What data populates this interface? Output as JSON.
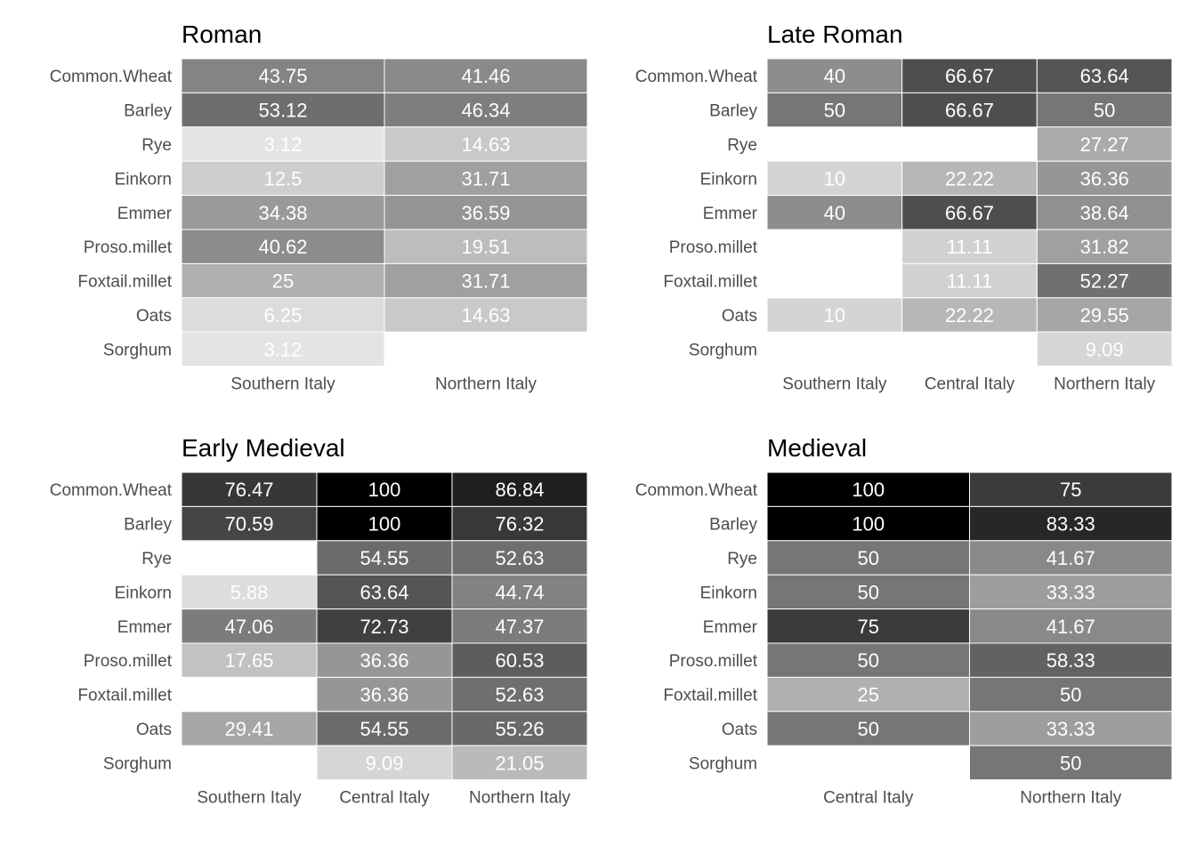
{
  "chart_data": [
    {
      "type": "heatmap",
      "title": "Roman",
      "rows": [
        "Common.Wheat",
        "Barley",
        "Rye",
        "Einkorn",
        "Emmer",
        "Proso.millet",
        "Foxtail.millet",
        "Oats",
        "Sorghum"
      ],
      "columns": [
        "Southern Italy",
        "Northern Italy"
      ],
      "values": [
        [
          43.75,
          41.46
        ],
        [
          53.12,
          46.34
        ],
        [
          3.12,
          14.63
        ],
        [
          12.5,
          31.71
        ],
        [
          34.38,
          36.59
        ],
        [
          40.62,
          19.51
        ],
        [
          25,
          31.71
        ],
        [
          6.25,
          14.63
        ],
        [
          3.12,
          null
        ]
      ]
    },
    {
      "type": "heatmap",
      "title": "Late Roman",
      "rows": [
        "Common.Wheat",
        "Barley",
        "Rye",
        "Einkorn",
        "Emmer",
        "Proso.millet",
        "Foxtail.millet",
        "Oats",
        "Sorghum"
      ],
      "columns": [
        "Southern Italy",
        "Central Italy",
        "Northern Italy"
      ],
      "values": [
        [
          40,
          66.67,
          63.64
        ],
        [
          50,
          66.67,
          50
        ],
        [
          null,
          null,
          27.27
        ],
        [
          10,
          22.22,
          36.36
        ],
        [
          40,
          66.67,
          38.64
        ],
        [
          null,
          11.11,
          31.82
        ],
        [
          null,
          11.11,
          52.27
        ],
        [
          10,
          22.22,
          29.55
        ],
        [
          null,
          null,
          9.09
        ]
      ]
    },
    {
      "type": "heatmap",
      "title": "Early Medieval",
      "rows": [
        "Common.Wheat",
        "Barley",
        "Rye",
        "Einkorn",
        "Emmer",
        "Proso.millet",
        "Foxtail.millet",
        "Oats",
        "Sorghum"
      ],
      "columns": [
        "Southern Italy",
        "Central Italy",
        "Northern Italy"
      ],
      "values": [
        [
          76.47,
          100,
          86.84
        ],
        [
          70.59,
          100,
          76.32
        ],
        [
          null,
          54.55,
          52.63
        ],
        [
          5.88,
          63.64,
          44.74
        ],
        [
          47.06,
          72.73,
          47.37
        ],
        [
          17.65,
          36.36,
          60.53
        ],
        [
          null,
          36.36,
          52.63
        ],
        [
          29.41,
          54.55,
          55.26
        ],
        [
          null,
          9.09,
          21.05
        ]
      ]
    },
    {
      "type": "heatmap",
      "title": "Medieval",
      "rows": [
        "Common.Wheat",
        "Barley",
        "Rye",
        "Einkorn",
        "Emmer",
        "Proso.millet",
        "Foxtail.millet",
        "Oats",
        "Sorghum"
      ],
      "columns": [
        "Central Italy",
        "Northern Italy"
      ],
      "values": [
        [
          100,
          75
        ],
        [
          100,
          83.33
        ],
        [
          50,
          41.67
        ],
        [
          50,
          33.33
        ],
        [
          75,
          41.67
        ],
        [
          50,
          58.33
        ],
        [
          25,
          50
        ],
        [
          50,
          33.33
        ],
        [
          null,
          50
        ]
      ]
    }
  ]
}
